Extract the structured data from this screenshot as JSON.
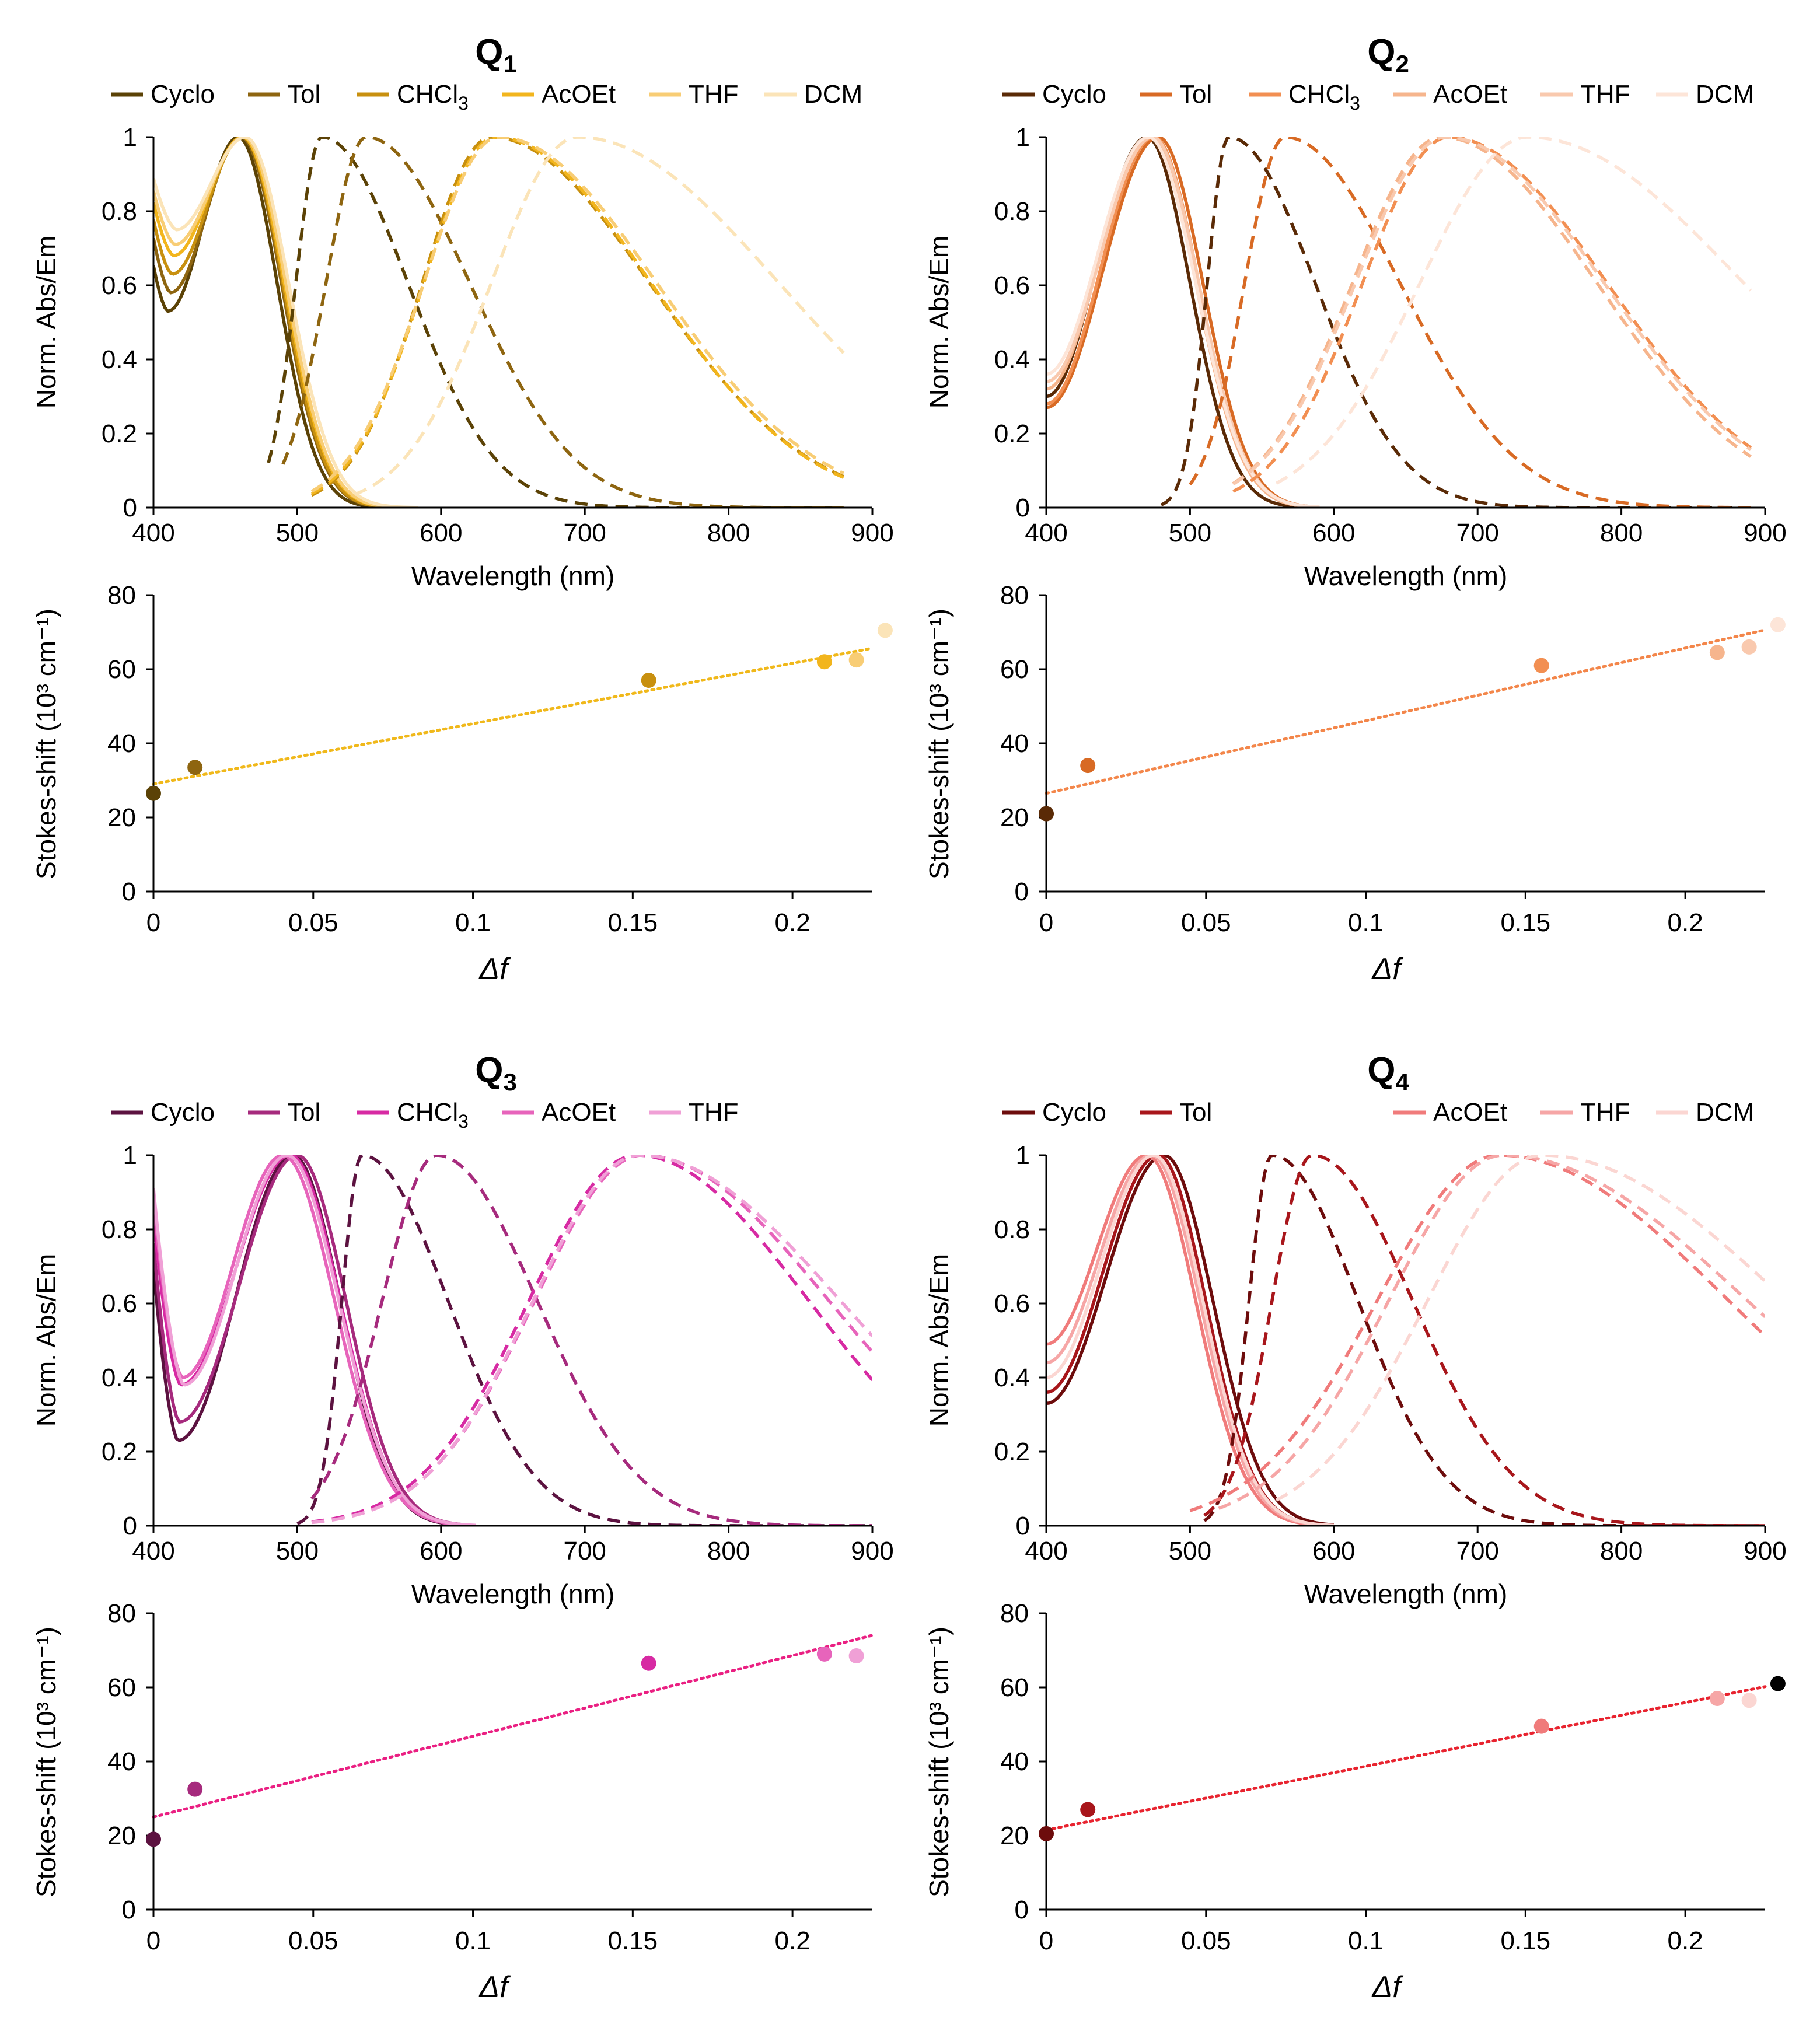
{
  "figure": {
    "y_label_spectra": "Norm. Abs/Em",
    "x_label_spectra": "Wavelength (nm)",
    "y_label_stokes": "Stokes-shift (10³ cm⁻¹)",
    "x_label_stokes": "Δf"
  },
  "chart_data": [
    {
      "id": "Q1",
      "title": "Q",
      "title_sub": "1",
      "legend": [
        "Cyclo",
        "Tol",
        "CHCl3",
        "AcOEt",
        "THF",
        "DCM"
      ],
      "colors": [
        "#5b4206",
        "#8e6510",
        "#c8900f",
        "#f2b51d",
        "#f8cd75",
        "#fbe4b8"
      ],
      "spectra": {
        "type": "line",
        "xlabel": "Wavelength (nm)",
        "ylabel": "Norm. Abs/Em",
        "xlim": [
          400,
          900
        ],
        "ylim": [
          0,
          1
        ],
        "xticks": [
          400,
          500,
          600,
          700,
          800,
          900
        ],
        "yticks": [
          0,
          0.2,
          0.4,
          0.6,
          0.8,
          1
        ],
        "absorption": [
          {
            "name": "Cyclo",
            "min_value": 0.53,
            "min_nm": 410,
            "peak_nm": 459,
            "width": 27,
            "red_end_nm": 560
          },
          {
            "name": "Tol",
            "min_value": 0.58,
            "min_nm": 412,
            "peak_nm": 461,
            "width": 28,
            "red_end_nm": 565
          },
          {
            "name": "CHCl3",
            "min_value": 0.63,
            "min_nm": 413,
            "peak_nm": 462,
            "width": 28,
            "red_end_nm": 570
          },
          {
            "name": "AcOEt",
            "min_value": 0.68,
            "min_nm": 414,
            "peak_nm": 462,
            "width": 29,
            "red_end_nm": 575
          },
          {
            "name": "THF",
            "min_value": 0.71,
            "min_nm": 415,
            "peak_nm": 463,
            "width": 29,
            "red_end_nm": 580
          },
          {
            "name": "DCM",
            "min_value": 0.75,
            "min_nm": 416,
            "peak_nm": 464,
            "width": 30,
            "red_end_nm": 585
          }
        ],
        "emission": [
          {
            "name": "Cyclo",
            "peak_nm": 517,
            "start_nm": 480,
            "end_nm": 880,
            "wl": 18,
            "wr": 60,
            "shoulder_nm": 550,
            "shoulder_value": 0.62
          },
          {
            "name": "Tol",
            "peak_nm": 548,
            "start_nm": 490,
            "end_nm": 880,
            "wl": 28,
            "wr": 72,
            "shoulder_nm": 0,
            "shoulder_value": 0
          },
          {
            "name": "CHCl3",
            "peak_nm": 635,
            "start_nm": 510,
            "end_nm": 880,
            "wl": 48,
            "wr": 110,
            "shoulder_nm": 0,
            "shoulder_value": 0
          },
          {
            "name": "AcOEt",
            "peak_nm": 638,
            "start_nm": 510,
            "end_nm": 880,
            "wl": 50,
            "wr": 108,
            "shoulder_nm": 0,
            "shoulder_value": 0
          },
          {
            "name": "THF",
            "peak_nm": 640,
            "start_nm": 510,
            "end_nm": 880,
            "wl": 52,
            "wr": 110,
            "shoulder_nm": 0,
            "shoulder_value": 0
          },
          {
            "name": "DCM",
            "peak_nm": 695,
            "start_nm": 540,
            "end_nm": 880,
            "wl": 60,
            "wr": 140,
            "shoulder_nm": 0,
            "shoulder_value": 0
          }
        ]
      },
      "stokes": {
        "type": "scatter",
        "xlabel": "Δf",
        "ylabel": "Stokes-shift (10³ cm⁻¹)",
        "xlim": [
          0,
          0.225
        ],
        "ylim": [
          0,
          80
        ],
        "xticks": [
          0,
          0.05,
          0.1,
          0.15,
          0.2
        ],
        "yticks": [
          0,
          20,
          40,
          60,
          80
        ],
        "x": [
          0,
          0.013,
          0.155,
          0.21,
          0.22,
          0.229
        ],
        "y": [
          26.5,
          33.5,
          57,
          62,
          62.5,
          70.5
        ],
        "fit": {
          "slope": 163,
          "intercept": 29,
          "color": "#f0b81a"
        }
      }
    },
    {
      "id": "Q2",
      "title": "Q",
      "title_sub": "2",
      "legend": [
        "Cyclo",
        "Tol",
        "CHCl3",
        "AcOEt",
        "THF",
        "DCM"
      ],
      "colors": [
        "#5a2a06",
        "#d86a24",
        "#f28f52",
        "#f6b58d",
        "#f9c9ae",
        "#fde5d8"
      ],
      "spectra": {
        "type": "line",
        "xlabel": "Wavelength (nm)",
        "ylabel": "Norm. Abs/Em",
        "xlim": [
          400,
          900
        ],
        "ylim": [
          0,
          1
        ],
        "xticks": [
          400,
          500,
          600,
          700,
          800,
          900
        ],
        "yticks": [
          0,
          0.2,
          0.4,
          0.6,
          0.8,
          1
        ],
        "absorption": [
          {
            "name": "Cyclo",
            "min_value": 0.3,
            "min_nm": 400,
            "peak_nm": 470,
            "width": 30,
            "red_end_nm": 575
          },
          {
            "name": "Tol",
            "min_value": 0.27,
            "min_nm": 400,
            "peak_nm": 478,
            "width": 31,
            "red_end_nm": 585
          },
          {
            "name": "CHCl3",
            "min_value": 0.28,
            "min_nm": 400,
            "peak_nm": 475,
            "width": 31,
            "red_end_nm": 585
          },
          {
            "name": "AcOEt",
            "min_value": 0.32,
            "min_nm": 400,
            "peak_nm": 472,
            "width": 32,
            "red_end_nm": 585
          },
          {
            "name": "THF",
            "min_value": 0.34,
            "min_nm": 400,
            "peak_nm": 474,
            "width": 32,
            "red_end_nm": 590
          },
          {
            "name": "DCM",
            "min_value": 0.36,
            "min_nm": 400,
            "peak_nm": 471,
            "width": 33,
            "red_end_nm": 590
          }
        ],
        "emission": [
          {
            "name": "Cyclo",
            "peak_nm": 527,
            "start_nm": 480,
            "end_nm": 890,
            "wl": 15,
            "wr": 60,
            "shoulder_nm": 560,
            "shoulder_value": 0.68
          },
          {
            "name": "Tol",
            "peak_nm": 566,
            "start_nm": 500,
            "end_nm": 890,
            "wl": 28,
            "wr": 80,
            "shoulder_nm": 0,
            "shoulder_value": 0
          },
          {
            "name": "CHCl3",
            "peak_nm": 680,
            "start_nm": 530,
            "end_nm": 890,
            "wl": 60,
            "wr": 110,
            "shoulder_nm": 0,
            "shoulder_value": 0
          },
          {
            "name": "AcOEt",
            "peak_nm": 675,
            "start_nm": 530,
            "end_nm": 890,
            "wl": 62,
            "wr": 108,
            "shoulder_nm": 0,
            "shoulder_value": 0
          },
          {
            "name": "THF",
            "peak_nm": 678,
            "start_nm": 530,
            "end_nm": 890,
            "wl": 63,
            "wr": 110,
            "shoulder_nm": 0,
            "shoulder_value": 0
          },
          {
            "name": "DCM",
            "peak_nm": 735,
            "start_nm": 560,
            "end_nm": 890,
            "wl": 75,
            "wr": 150,
            "shoulder_nm": 0,
            "shoulder_value": 0
          }
        ]
      },
      "stokes": {
        "type": "scatter",
        "xlabel": "Δf",
        "ylabel": "Stokes-shift (10³ cm⁻¹)",
        "xlim": [
          0,
          0.225
        ],
        "ylim": [
          0,
          80
        ],
        "xticks": [
          0,
          0.05,
          0.1,
          0.15,
          0.2
        ],
        "yticks": [
          0,
          20,
          40,
          60,
          80
        ],
        "x": [
          0,
          0.013,
          0.155,
          0.21,
          0.22,
          0.229
        ],
        "y": [
          21,
          34,
          61,
          64.5,
          66,
          72
        ],
        "fit": {
          "slope": 196,
          "intercept": 26.5,
          "color": "#f3864a"
        }
      }
    },
    {
      "id": "Q3",
      "title": "Q",
      "title_sub": "3",
      "legend": [
        "Cyclo",
        "Tol",
        "CHCl3",
        "AcOEt",
        "THF"
      ],
      "colors": [
        "#5c1240",
        "#a62a7d",
        "#d72aa3",
        "#e764bb",
        "#f0a0d6"
      ],
      "spectra": {
        "type": "line",
        "xlabel": "Wavelength (nm)",
        "ylabel": "Norm. Abs/Em",
        "xlim": [
          400,
          900
        ],
        "ylim": [
          0,
          1
        ],
        "xticks": [
          400,
          500,
          600,
          700,
          800,
          900
        ],
        "yticks": [
          0,
          0.2,
          0.4,
          0.6,
          0.8,
          1
        ],
        "absorption": [
          {
            "name": "Cyclo",
            "min_value": 0.23,
            "min_nm": 417,
            "peak_nm": 497,
            "width": 33,
            "red_end_nm": 610
          },
          {
            "name": "Tol",
            "min_value": 0.28,
            "min_nm": 418,
            "peak_nm": 500,
            "width": 34,
            "red_end_nm": 615
          },
          {
            "name": "CHCl3",
            "min_value": 0.38,
            "min_nm": 419,
            "peak_nm": 495,
            "width": 35,
            "red_end_nm": 620
          },
          {
            "name": "AcOEt",
            "min_value": 0.4,
            "min_nm": 420,
            "peak_nm": 490,
            "width": 36,
            "red_end_nm": 625
          },
          {
            "name": "THF",
            "min_value": 0.38,
            "min_nm": 421,
            "peak_nm": 493,
            "width": 36,
            "red_end_nm": 625
          }
        ],
        "emission": [
          {
            "name": "Cyclo",
            "peak_nm": 545,
            "start_nm": 500,
            "end_nm": 900,
            "wl": 14,
            "wr": 60,
            "shoulder_nm": 580,
            "shoulder_value": 0.63
          },
          {
            "name": "Tol",
            "peak_nm": 597,
            "start_nm": 510,
            "end_nm": 900,
            "wl": 38,
            "wr": 70,
            "shoulder_nm": 0,
            "shoulder_value": 0
          },
          {
            "name": "CHCl3",
            "peak_nm": 736,
            "start_nm": 510,
            "end_nm": 900,
            "wl": 75,
            "wr": 120,
            "shoulder_nm": 0,
            "shoulder_value": 0
          },
          {
            "name": "AcOEt",
            "peak_nm": 740,
            "start_nm": 510,
            "end_nm": 900,
            "wl": 75,
            "wr": 130,
            "shoulder_nm": 0,
            "shoulder_value": 0
          },
          {
            "name": "THF",
            "peak_nm": 738,
            "start_nm": 510,
            "end_nm": 900,
            "wl": 74,
            "wr": 140,
            "shoulder_nm": 0,
            "shoulder_value": 0
          }
        ]
      },
      "stokes": {
        "type": "scatter",
        "xlabel": "Δf",
        "ylabel": "Stokes-shift (10³ cm⁻¹)",
        "xlim": [
          0,
          0.225
        ],
        "ylim": [
          0,
          80
        ],
        "xticks": [
          0,
          0.05,
          0.1,
          0.15,
          0.2
        ],
        "yticks": [
          0,
          20,
          40,
          60,
          80
        ],
        "x": [
          0,
          0.013,
          0.155,
          0.21,
          0.22
        ],
        "y": [
          19,
          32.5,
          66.5,
          69,
          68.5
        ],
        "fit": {
          "slope": 218,
          "intercept": 25,
          "color": "#ea1f82"
        }
      }
    },
    {
      "id": "Q4",
      "title": "Q",
      "title_sub": "4",
      "legend": [
        "Cyclo",
        "Tol",
        "AcOEt",
        "THF",
        "DCM"
      ],
      "colors": [
        "#6d0c0c",
        "#a8161b",
        "#f07b7b",
        "#f6a6a6",
        "#fbd6d2"
      ],
      "spectra": {
        "type": "line",
        "xlabel": "Wavelength (nm)",
        "ylabel": "Norm. Abs/Em",
        "xlim": [
          400,
          900
        ],
        "ylim": [
          0,
          1
        ],
        "xticks": [
          400,
          500,
          600,
          700,
          800,
          900
        ],
        "yticks": [
          0,
          0.2,
          0.4,
          0.6,
          0.8,
          1
        ],
        "absorption": [
          {
            "name": "Cyclo",
            "min_value": 0.33,
            "min_nm": 400,
            "peak_nm": 482,
            "width": 34,
            "red_end_nm": 600
          },
          {
            "name": "Tol",
            "min_value": 0.36,
            "min_nm": 400,
            "peak_nm": 478,
            "width": 33,
            "red_end_nm": 600
          },
          {
            "name": "AcOEt",
            "min_value": 0.49,
            "min_nm": 400,
            "peak_nm": 470,
            "width": 34,
            "red_end_nm": 600
          },
          {
            "name": "THF",
            "min_value": 0.44,
            "min_nm": 400,
            "peak_nm": 473,
            "width": 34,
            "red_end_nm": 600
          },
          {
            "name": "DCM",
            "min_value": 0.4,
            "min_nm": 400,
            "peak_nm": 475,
            "width": 34,
            "red_end_nm": 600
          }
        ],
        "emission": [
          {
            "name": "Cyclo",
            "peak_nm": 557,
            "start_nm": 510,
            "end_nm": 900,
            "wl": 16,
            "wr": 60,
            "shoulder_nm": 590,
            "shoulder_value": 0.6
          },
          {
            "name": "Tol",
            "peak_nm": 585,
            "start_nm": 510,
            "end_nm": 900,
            "wl": 28,
            "wr": 70,
            "shoulder_nm": 0,
            "shoulder_value": 0
          },
          {
            "name": "AcOEt",
            "peak_nm": 715,
            "start_nm": 500,
            "end_nm": 900,
            "wl": 85,
            "wr": 160,
            "shoulder_nm": 0,
            "shoulder_value": 0
          },
          {
            "name": "THF",
            "peak_nm": 718,
            "start_nm": 520,
            "end_nm": 900,
            "wl": 80,
            "wr": 170,
            "shoulder_nm": 0,
            "shoulder_value": 0
          },
          {
            "name": "DCM",
            "peak_nm": 745,
            "start_nm": 560,
            "end_nm": 900,
            "wl": 80,
            "wr": 170,
            "shoulder_nm": 0,
            "shoulder_value": 0
          }
        ]
      },
      "stokes": {
        "type": "scatter",
        "xlabel": "Δf",
        "ylabel": "Stokes-shift (10³ cm⁻¹)",
        "xlim": [
          0,
          0.225
        ],
        "ylim": [
          0,
          80
        ],
        "xticks": [
          0,
          0.05,
          0.1,
          0.15,
          0.2
        ],
        "yticks": [
          0,
          20,
          40,
          60,
          80
        ],
        "x": [
          0,
          0.013,
          0.155,
          0.21,
          0.22,
          0.229
        ],
        "y": [
          20.5,
          27,
          49.5,
          57,
          56.5,
          61
        ],
        "fit": {
          "slope": 172,
          "intercept": 21.5,
          "color": "#e8232f"
        }
      }
    }
  ]
}
